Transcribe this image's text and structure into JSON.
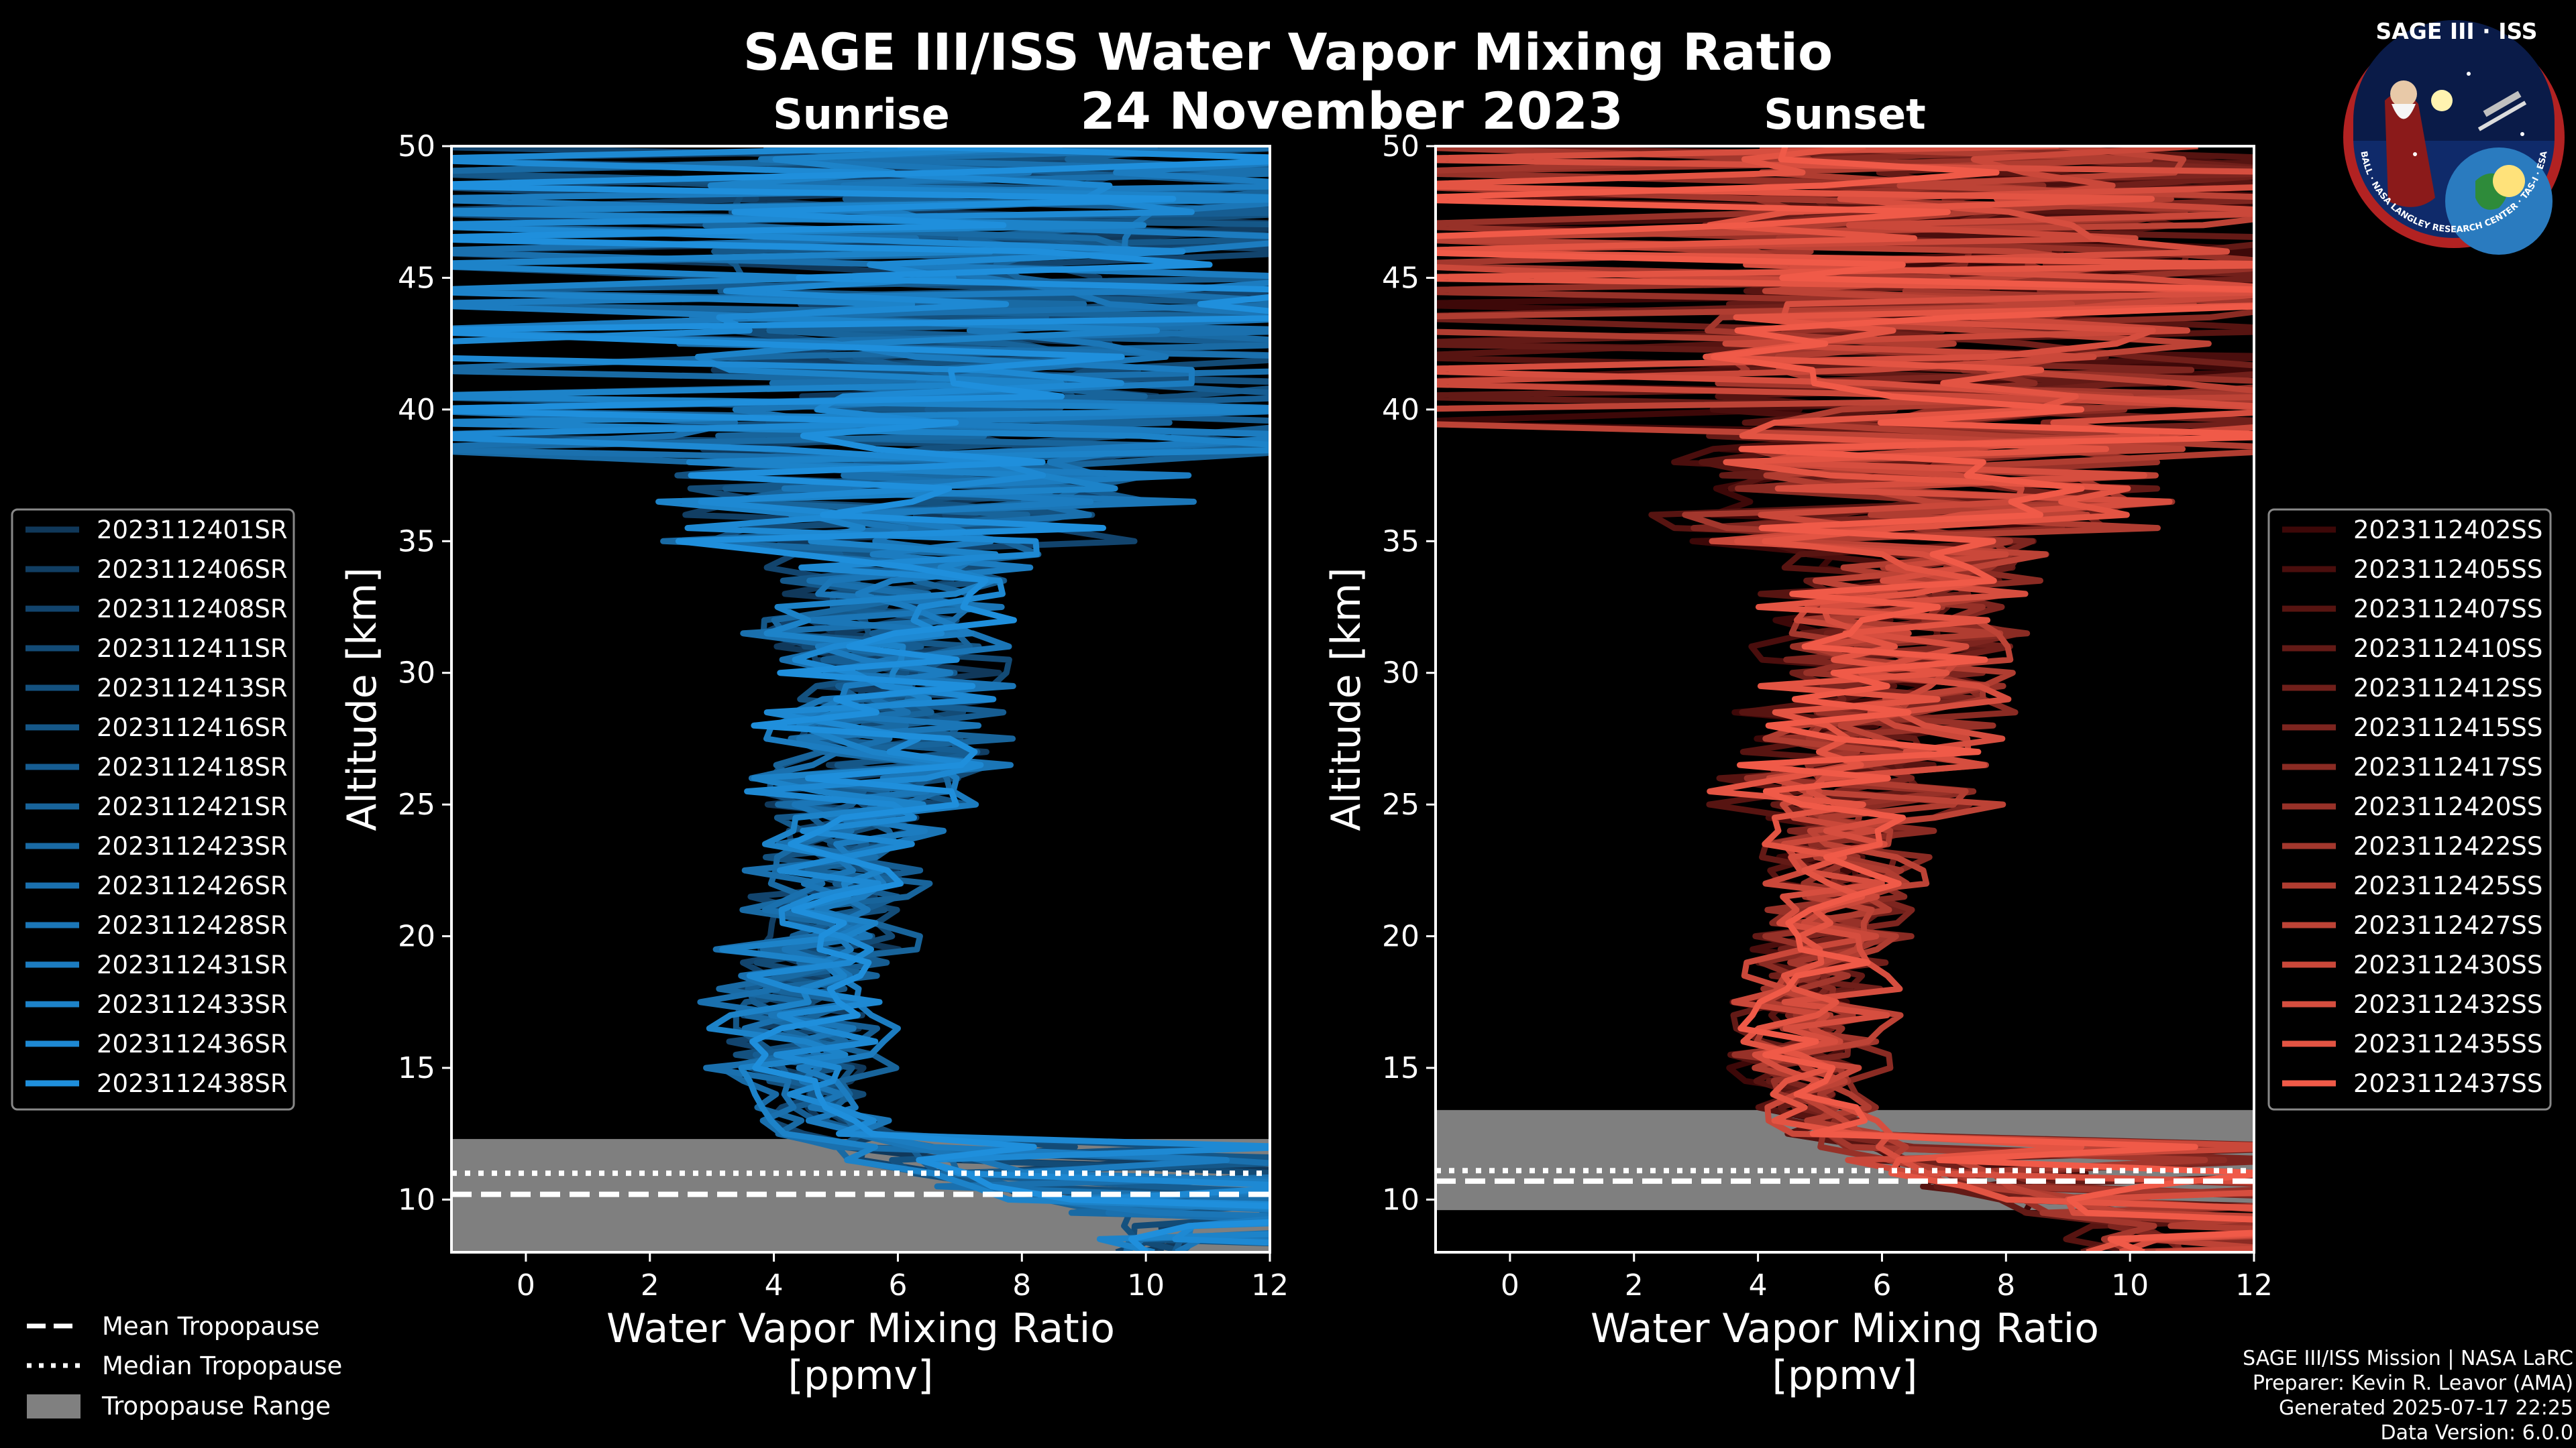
{
  "title": "SAGE III/ISS Water Vapor Mixing Ratio",
  "date": "24 November 2023",
  "logo": {
    "text": "SAGE III · ISS",
    "ring_text": "BALL · NASA LANGLEY RESEARCH CENTER · TAS-I · ESA"
  },
  "credits": {
    "line1": "SAGE III/ISS Mission | NASA LaRC",
    "line2": "Preparer: Kevin R. Leavor (AMA)",
    "line3": "Generated 2025-07-17 22:25",
    "line4": "Data Version: 6.0.0"
  },
  "tropopause_legend": {
    "mean": "Mean Tropopause",
    "median": "Median Tropopause",
    "range": "Tropopause Range"
  },
  "chart_data": [
    {
      "type": "line",
      "panel": "Sunrise",
      "title": "Sunrise",
      "xlabel": "Water Vapor Mixing Ratio\n[ppmv]",
      "ylabel": "Altitude [km]",
      "xlim": [
        -1.2,
        12
      ],
      "ylim": [
        8,
        50
      ],
      "xticks": [
        0,
        2,
        4,
        6,
        8,
        10,
        12
      ],
      "yticks": [
        10,
        15,
        20,
        25,
        30,
        35,
        40,
        45,
        50
      ],
      "grid": false,
      "legend_position": "left",
      "color_light": "#1f8fdc",
      "color_dark": "#10385a",
      "tropopause": {
        "mean": 10.2,
        "median": 11.0,
        "range": [
          8,
          12.3
        ]
      },
      "series": [
        {
          "name": "2023112401SR"
        },
        {
          "name": "2023112406SR"
        },
        {
          "name": "2023112408SR"
        },
        {
          "name": "2023112411SR"
        },
        {
          "name": "2023112413SR"
        },
        {
          "name": "2023112416SR"
        },
        {
          "name": "2023112418SR"
        },
        {
          "name": "2023112421SR"
        },
        {
          "name": "2023112423SR"
        },
        {
          "name": "2023112426SR"
        },
        {
          "name": "2023112428SR"
        },
        {
          "name": "2023112431SR"
        },
        {
          "name": "2023112433SR"
        },
        {
          "name": "2023112436SR"
        },
        {
          "name": "2023112438SR"
        }
      ],
      "typical_profile": {
        "altitude_km": [
          9,
          11,
          12,
          13,
          15,
          18,
          20,
          23,
          26,
          29,
          32,
          35,
          38,
          42,
          46,
          50
        ],
        "water_vapor_ppmv": [
          10,
          7,
          5.5,
          4.8,
          4.4,
          4.5,
          4.8,
          5.1,
          5.4,
          5.6,
          5.9,
          6.2,
          6.5,
          6.8,
          7.0,
          7.2
        ]
      }
    },
    {
      "type": "line",
      "panel": "Sunset",
      "title": "Sunset",
      "xlabel": "Water Vapor Mixing Ratio\n[ppmv]",
      "ylabel": "Altitude [km]",
      "xlim": [
        -1.2,
        12
      ],
      "ylim": [
        8,
        50
      ],
      "xticks": [
        0,
        2,
        4,
        6,
        8,
        10,
        12
      ],
      "yticks": [
        10,
        15,
        20,
        25,
        30,
        35,
        40,
        45,
        50
      ],
      "grid": false,
      "legend_position": "right",
      "color_light": "#f05a48",
      "color_dark": "#3d0808",
      "tropopause": {
        "mean": 10.7,
        "median": 11.1,
        "range": [
          9.6,
          13.4
        ]
      },
      "series": [
        {
          "name": "2023112402SS"
        },
        {
          "name": "2023112405SS"
        },
        {
          "name": "2023112407SS"
        },
        {
          "name": "2023112410SS"
        },
        {
          "name": "2023112412SS"
        },
        {
          "name": "2023112415SS"
        },
        {
          "name": "2023112417SS"
        },
        {
          "name": "2023112420SS"
        },
        {
          "name": "2023112422SS"
        },
        {
          "name": "2023112425SS"
        },
        {
          "name": "2023112427SS"
        },
        {
          "name": "2023112430SS"
        },
        {
          "name": "2023112432SS"
        },
        {
          "name": "2023112435SS"
        },
        {
          "name": "2023112437SS"
        }
      ],
      "typical_profile": {
        "altitude_km": [
          9,
          11,
          12,
          13,
          15,
          18,
          20,
          23,
          26,
          29,
          32,
          35,
          38,
          42,
          46,
          50
        ],
        "water_vapor_ppmv": [
          10,
          7,
          5.6,
          5.0,
          4.7,
          4.8,
          5.0,
          5.3,
          5.6,
          5.9,
          6.2,
          6.5,
          6.8,
          7.1,
          7.3,
          7.5
        ]
      }
    }
  ]
}
